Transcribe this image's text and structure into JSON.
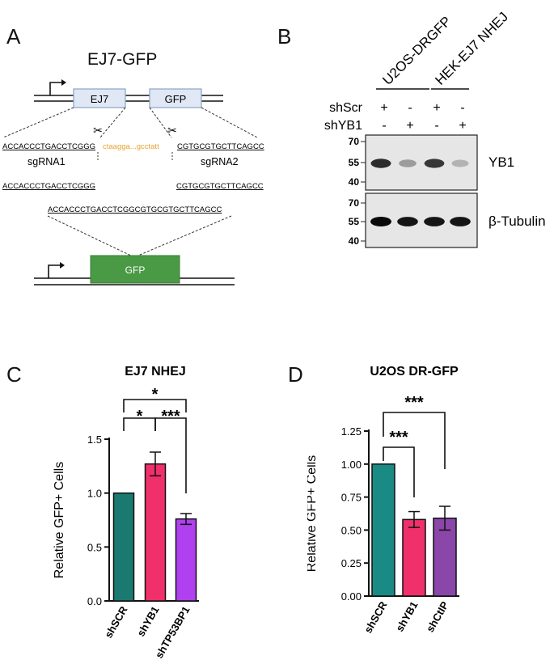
{
  "panels": {
    "a": {
      "letter": "A",
      "title": "EJ7-GFP",
      "box_ej7": "EJ7",
      "box_gfp": "GFP",
      "left_seq": "ACCACCCTGACCTCGGG",
      "middle_seq": "ctaagga...gcctatt",
      "right_seq": "CGTGCGTGCTTCAGCC",
      "sgrna1": "sgRNA1",
      "sgrna2": "sgRNA2",
      "left_seq2": "ACCACCCTGACCTCGGG",
      "right_seq2": "CGTGCGTGCTTCAGCC",
      "joined_seq": "ACCACCCTGACCTCGGCGTGCGTGCTTCAGCC",
      "result_gfp": "GFP",
      "colors": {
        "box_fill": "#dfe8f4",
        "box_stroke": "#8aa3c4",
        "gfp_fill": "#4a9a45",
        "orange": "#e8a432"
      }
    },
    "b": {
      "letter": "B",
      "cell_lines": [
        "U2OS-DRGFP",
        "HEK-EJ7 NHEJ"
      ],
      "rows": [
        {
          "label": "shScr",
          "marks": [
            "+",
            "-",
            "+",
            "-"
          ]
        },
        {
          "label": "shYB1",
          "marks": [
            "-",
            "+",
            "-",
            "+"
          ]
        }
      ],
      "blot1": {
        "markers": [
          "70",
          "55",
          "40"
        ],
        "protein": "YB1",
        "intensity": [
          0.85,
          0.35,
          0.8,
          0.25
        ]
      },
      "blot2": {
        "markers": [
          "70",
          "55",
          "40"
        ],
        "protein": "β-Tubulin",
        "intensity": [
          1,
          0.95,
          0.95,
          0.95
        ]
      }
    },
    "c": {
      "letter": "C",
      "sig_main": "*",
      "sig_left": "*",
      "sig_right": "***"
    },
    "d": {
      "letter": "D",
      "sig_top": "***",
      "sig_lower": "***"
    }
  },
  "chart_data": [
    {
      "type": "bar",
      "title": "EJ7 NHEJ",
      "ylabel": "Relative GFP+ Cells",
      "xlabel": "",
      "categories": [
        "shSCR",
        "shYB1",
        "shTP53BP1"
      ],
      "values": [
        1.0,
        1.27,
        0.76
      ],
      "errors": [
        0,
        0.11,
        0.05
      ],
      "colors": [
        "#1a7a70",
        "#f0306a",
        "#b040f0"
      ],
      "ylim": [
        0,
        1.5
      ],
      "yticks": [
        "0.0",
        "0.5",
        "1.0",
        "1.5"
      ],
      "grid": false
    },
    {
      "type": "bar",
      "title": "U2OS DR-GFP",
      "ylabel": "Relative GFP+ Cells",
      "xlabel": "",
      "categories": [
        "shSCR",
        "shYB1",
        "shCtIP"
      ],
      "values": [
        1.0,
        0.58,
        0.59
      ],
      "errors": [
        0,
        0.06,
        0.09
      ],
      "colors": [
        "#1a8a84",
        "#f0306a",
        "#8a46a8"
      ],
      "ylim": [
        0,
        1.25
      ],
      "yticks": [
        "0.00",
        "0.25",
        "0.50",
        "0.75",
        "1.00",
        "1.25"
      ],
      "grid": false
    }
  ]
}
